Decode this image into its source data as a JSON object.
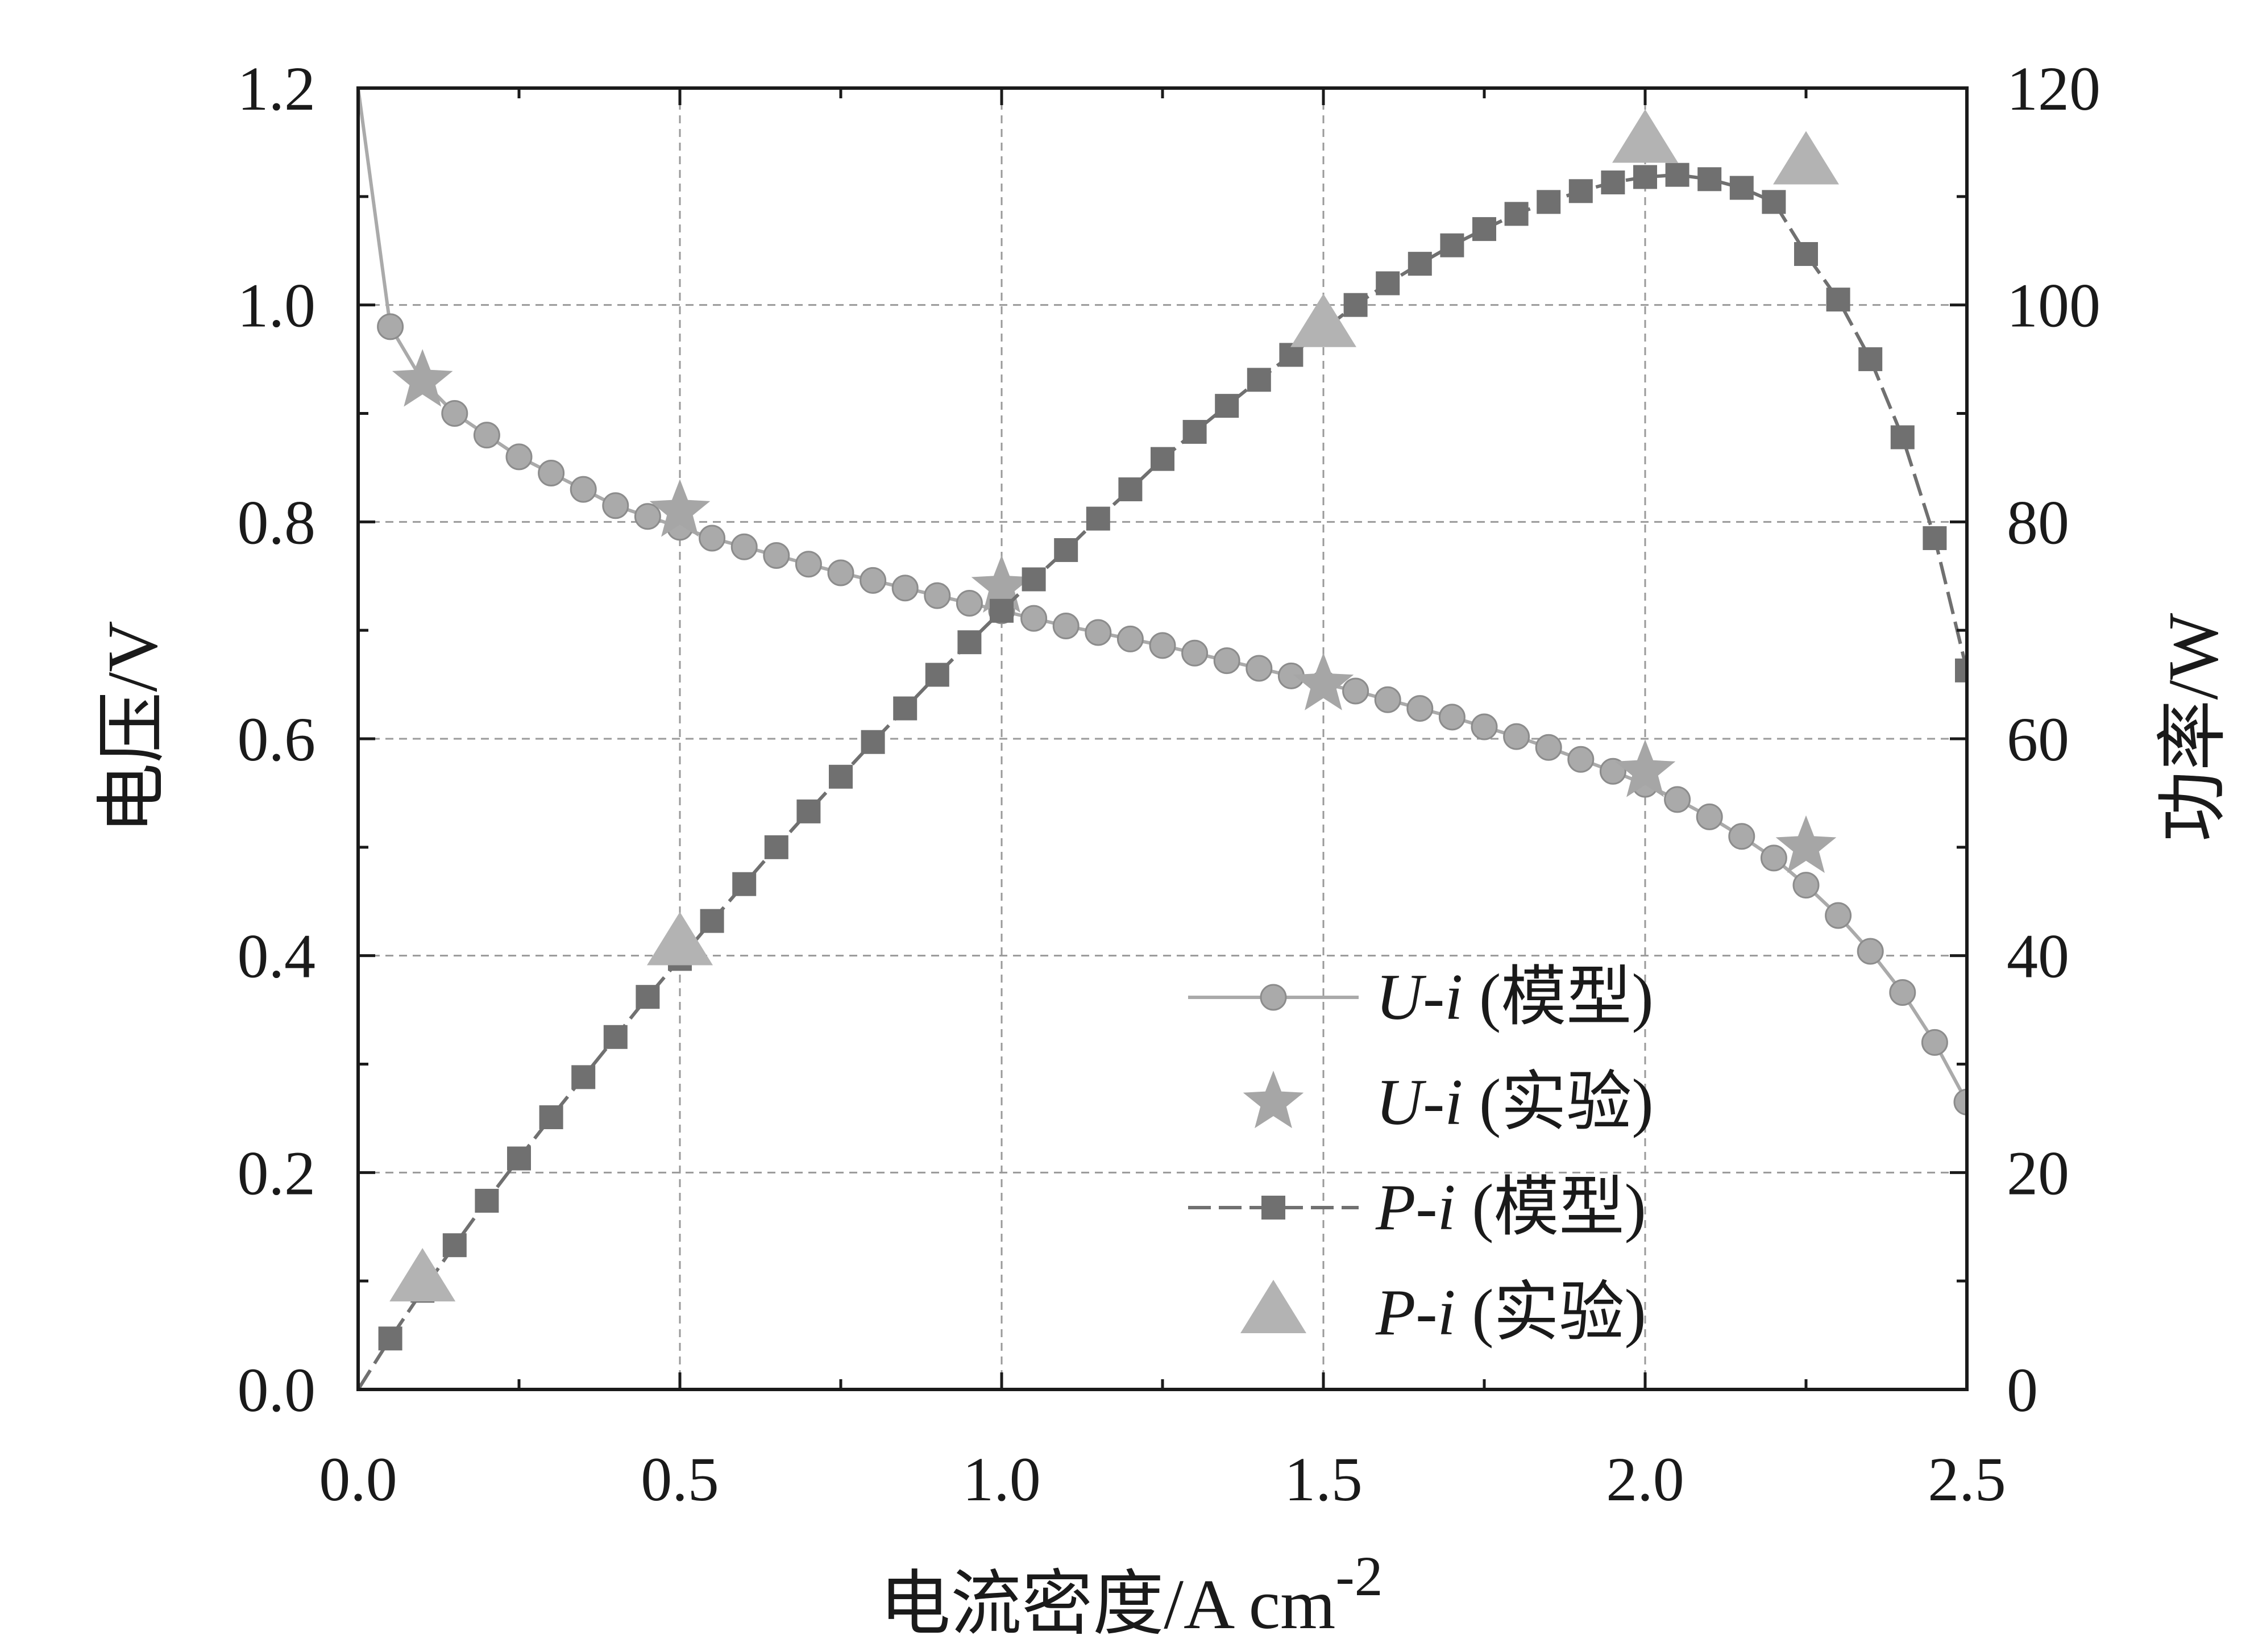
{
  "chart_data": {
    "type": "line",
    "xlabel": "电流密度/A cm",
    "xlabel_sup": "-2",
    "ylabel_left": "电压/V",
    "ylabel_right": "功率/W",
    "xlim": [
      0,
      2.5
    ],
    "ylim_left": [
      0,
      1.2
    ],
    "ylim_right": [
      0,
      120
    ],
    "grid": true,
    "legend_position": "lower-right",
    "x_ticks": [
      "0.0",
      "0.5",
      "1.0",
      "1.5",
      "2.0",
      "2.5"
    ],
    "y_left_ticks": [
      "0.0",
      "0.2",
      "0.4",
      "0.6",
      "0.8",
      "1.0",
      "1.2"
    ],
    "y_right_ticks": [
      "0",
      "20",
      "40",
      "60",
      "80",
      "100",
      "120"
    ],
    "colors": {
      "u_model": "#aaaaaa",
      "u_exp": "#a6a6a6",
      "p_model": "#707070",
      "p_exp": "#b3b3b3",
      "grid": "#9a9a9a",
      "axis": "#1a1a1a"
    },
    "series": [
      {
        "name": "U-i (模型)",
        "name_italic": "U-i",
        "name_suffix": " (模型)",
        "axis": "left",
        "marker": "circle",
        "line": "solid",
        "x": [
          0.0,
          0.05,
          0.1,
          0.15,
          0.2,
          0.25,
          0.3,
          0.35,
          0.4,
          0.45,
          0.5,
          0.55,
          0.6,
          0.65,
          0.7,
          0.75,
          0.8,
          0.85,
          0.9,
          0.95,
          1.0,
          1.05,
          1.1,
          1.15,
          1.2,
          1.25,
          1.3,
          1.35,
          1.4,
          1.45,
          1.5,
          1.55,
          1.6,
          1.65,
          1.7,
          1.75,
          1.8,
          1.85,
          1.9,
          1.95,
          2.0,
          2.05,
          2.1,
          2.15,
          2.2,
          2.25,
          2.3,
          2.35,
          2.4,
          2.45,
          2.5
        ],
        "y": [
          1.2,
          0.98,
          0.93,
          0.9,
          0.88,
          0.86,
          0.845,
          0.83,
          0.815,
          0.805,
          0.795,
          0.785,
          0.777,
          0.769,
          0.761,
          0.753,
          0.746,
          0.739,
          0.732,
          0.725,
          0.718,
          0.711,
          0.704,
          0.698,
          0.692,
          0.686,
          0.679,
          0.672,
          0.665,
          0.658,
          0.651,
          0.644,
          0.636,
          0.628,
          0.62,
          0.611,
          0.602,
          0.592,
          0.581,
          0.57,
          0.558,
          0.544,
          0.528,
          0.51,
          0.49,
          0.465,
          0.437,
          0.404,
          0.366,
          0.32,
          0.265
        ]
      },
      {
        "name": "U-i (实验)",
        "name_italic": "U-i",
        "name_suffix": " (实验)",
        "axis": "left",
        "marker": "star",
        "line": "none",
        "x": [
          0.1,
          0.5,
          1.0,
          1.5,
          2.0,
          2.25
        ],
        "y": [
          0.93,
          0.81,
          0.74,
          0.65,
          0.57,
          0.5
        ]
      },
      {
        "name": "P-i (模型)",
        "name_italic": "P-i",
        "name_suffix": " (模型)",
        "axis": "right",
        "marker": "square",
        "line": "dashed",
        "x": [
          0.0,
          0.05,
          0.1,
          0.15,
          0.2,
          0.25,
          0.3,
          0.35,
          0.4,
          0.45,
          0.5,
          0.55,
          0.6,
          0.65,
          0.7,
          0.75,
          0.8,
          0.85,
          0.9,
          0.95,
          1.0,
          1.05,
          1.1,
          1.15,
          1.2,
          1.25,
          1.3,
          1.35,
          1.4,
          1.45,
          1.5,
          1.55,
          1.6,
          1.65,
          1.7,
          1.75,
          1.8,
          1.85,
          1.9,
          1.95,
          2.0,
          2.05,
          2.1,
          2.15,
          2.2,
          2.25,
          2.3,
          2.35,
          2.4,
          2.45,
          2.5
        ],
        "y": [
          0.0,
          4.7,
          9.1,
          13.3,
          17.4,
          21.3,
          25.1,
          28.8,
          32.5,
          36.2,
          39.7,
          43.2,
          46.6,
          50.0,
          53.3,
          56.5,
          59.7,
          62.8,
          65.9,
          68.9,
          71.8,
          74.7,
          77.4,
          80.3,
          83.0,
          85.8,
          88.3,
          90.7,
          93.1,
          95.4,
          97.7,
          100.0,
          102.0,
          103.8,
          105.5,
          107.0,
          108.4,
          109.5,
          110.5,
          111.3,
          111.8,
          112.0,
          111.6,
          110.8,
          109.5,
          104.7,
          100.5,
          95.0,
          87.8,
          78.5,
          66.3
        ]
      },
      {
        "name": "P-i (实验)",
        "name_italic": "P-i",
        "name_suffix": " (实验)",
        "axis": "right",
        "marker": "triangle",
        "line": "none",
        "x": [
          0.1,
          0.5,
          1.5,
          2.0,
          2.25
        ],
        "y": [
          10,
          41,
          98,
          115,
          113
        ]
      }
    ]
  }
}
